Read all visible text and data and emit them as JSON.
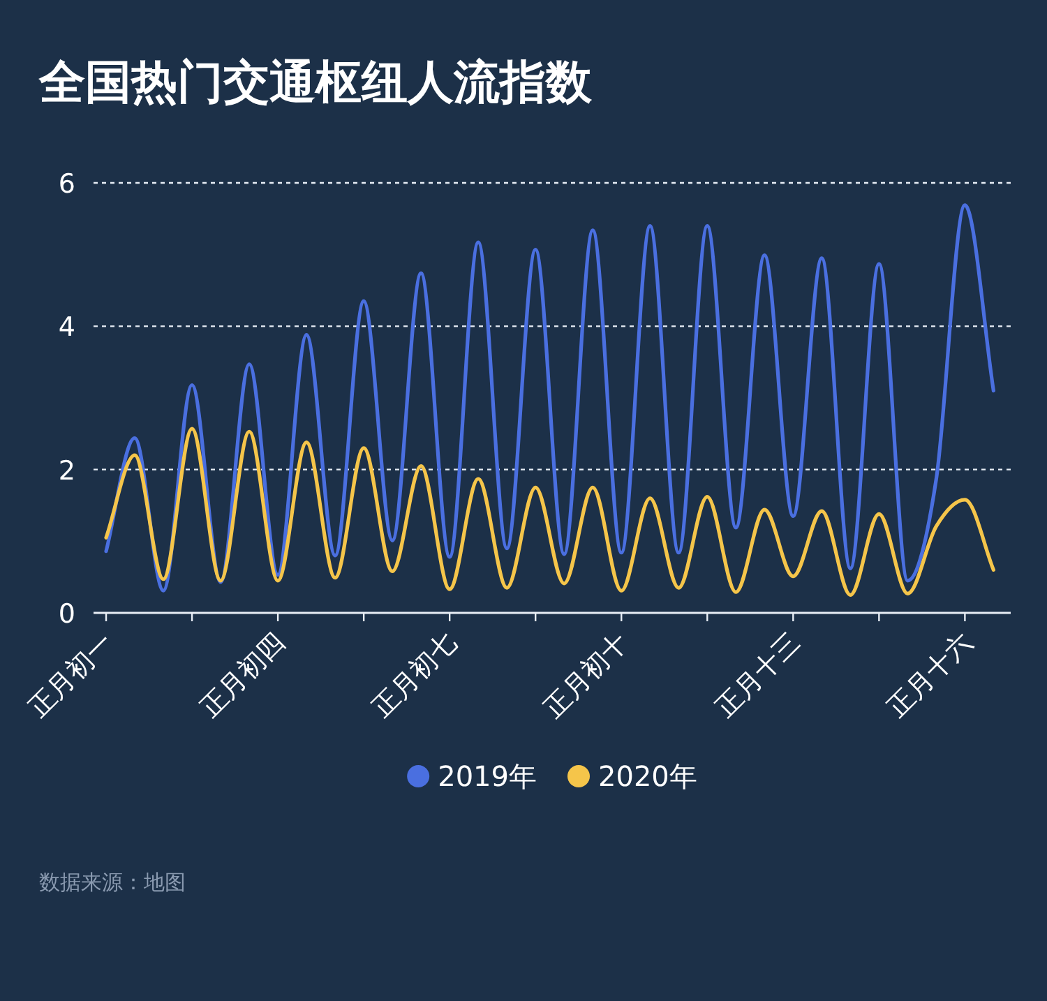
{
  "chart_data": {
    "type": "line",
    "title": "全国热门交通枢纽人流指数",
    "annotations": [
      "数据来源：地图"
    ],
    "categories": [
      "正月初一",
      null,
      null,
      null,
      null,
      null,
      "正月初四",
      null,
      null,
      null,
      null,
      null,
      "正月初七",
      null,
      null,
      null,
      null,
      null,
      "正月初十",
      null,
      null,
      null,
      null,
      null,
      "正月十三",
      null,
      null,
      null,
      null,
      null,
      "正月十六",
      null
    ],
    "ylim": [
      0,
      6
    ],
    "yticks": [
      0,
      2,
      4,
      6
    ],
    "grid": "y",
    "legend": "bottom",
    "marker": "none",
    "line_style": "solid",
    "series": [
      {
        "name": "2019年",
        "color": "#4a6fe0",
        "values": [
          0.86,
          2.44,
          0.31,
          3.18,
          0.43,
          3.47,
          0.53,
          3.88,
          0.8,
          4.35,
          1.01,
          4.74,
          0.78,
          5.17,
          0.9,
          5.07,
          0.82,
          5.34,
          0.84,
          5.4,
          0.84,
          5.4,
          1.19,
          4.99,
          1.35,
          4.95,
          0.62,
          4.87,
          0.45,
          1.87,
          5.69,
          3.1
        ]
      },
      {
        "name": "2020年",
        "color": "#f5c54a",
        "values": [
          1.05,
          2.2,
          0.47,
          2.57,
          0.45,
          2.53,
          0.45,
          2.38,
          0.49,
          2.3,
          0.58,
          2.05,
          0.33,
          1.87,
          0.35,
          1.75,
          0.41,
          1.75,
          0.31,
          1.6,
          0.35,
          1.62,
          0.29,
          1.44,
          0.51,
          1.42,
          0.25,
          1.38,
          0.27,
          1.21,
          1.58,
          0.6
        ]
      }
    ]
  }
}
